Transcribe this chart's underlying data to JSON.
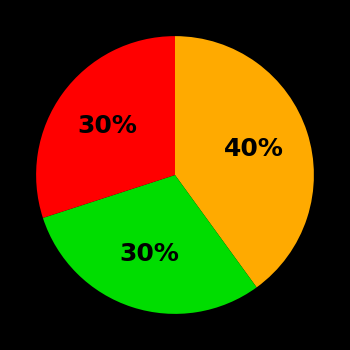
{
  "slices": [
    40,
    30,
    30
  ],
  "colors": [
    "#ffaa00",
    "#00dd00",
    "#ff0000"
  ],
  "labels": [
    "40%",
    "30%",
    "30%"
  ],
  "background_color": "#000000",
  "text_color": "#000000",
  "startangle": 90,
  "figsize": [
    3.5,
    3.5
  ],
  "dpi": 100
}
